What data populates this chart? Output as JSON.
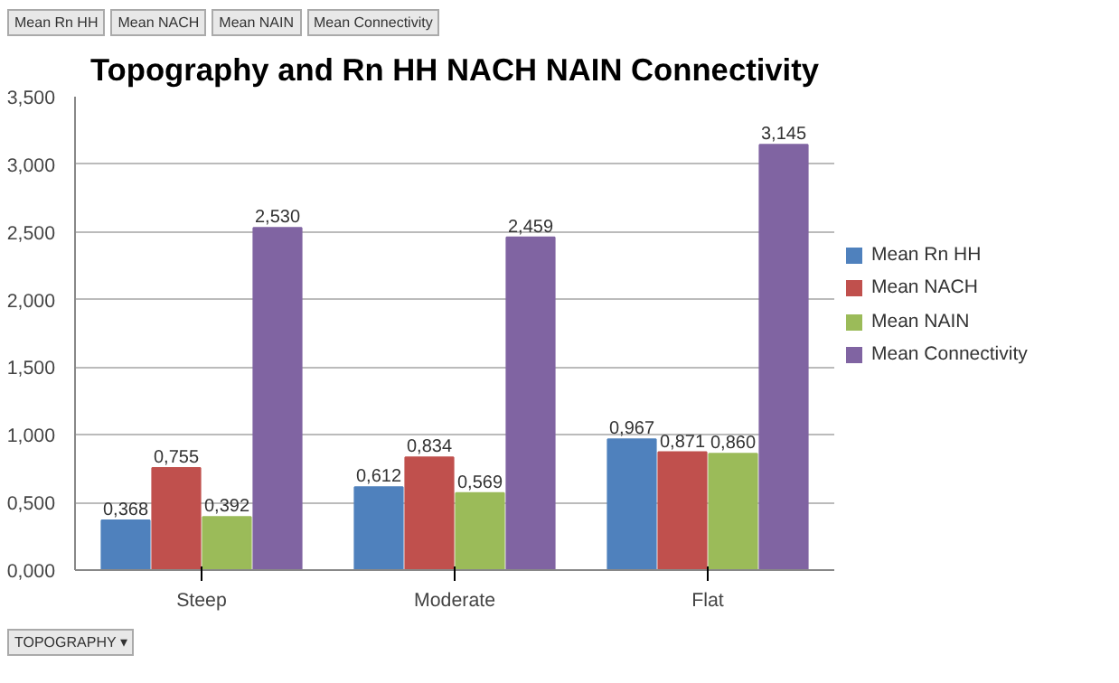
{
  "chart_data": {
    "type": "bar",
    "title": "Topography and Rn HH NACH NAIN Connectivity",
    "categories": [
      "Steep",
      "Moderate",
      "Flat"
    ],
    "series": [
      {
        "name": "Mean Rn HH",
        "color": "#4f81bd",
        "values": [
          0.368,
          0.612,
          0.967
        ],
        "value_labels": [
          "0,368",
          "0,612",
          "0,967"
        ]
      },
      {
        "name": "Mean NACH",
        "color": "#c0504d",
        "values": [
          0.755,
          0.834,
          0.871
        ],
        "value_labels": [
          "0,755",
          "0,834",
          "0,871"
        ]
      },
      {
        "name": "Mean NAIN",
        "color": "#9bbb59",
        "values": [
          0.392,
          0.569,
          0.86
        ],
        "value_labels": [
          "0,392",
          "0,569",
          "0,860"
        ]
      },
      {
        "name": "Mean Connectivity",
        "color": "#8064a2",
        "values": [
          2.53,
          2.459,
          3.145
        ],
        "value_labels": [
          "2,530",
          "2,459",
          "3,145"
        ]
      }
    ],
    "ylim": [
      0,
      3.5
    ],
    "yticks": [
      {
        "value": 0,
        "label": "0,000"
      },
      {
        "value": 0.5,
        "label": "0,500"
      },
      {
        "value": 1,
        "label": "1,000"
      },
      {
        "value": 1.5,
        "label": "1,500"
      },
      {
        "value": 2,
        "label": "2,000"
      },
      {
        "value": 2.5,
        "label": "2,500"
      },
      {
        "value": 3,
        "label": "3,000"
      },
      {
        "value": 3.5,
        "label": "3,500"
      }
    ],
    "grid": "y",
    "legend": "right",
    "annotations": [
      "Mean Rn HH",
      "Mean NACH",
      "Mean NAIN",
      "Mean Connectivity",
      "TOPOGRAPHY ▾"
    ]
  }
}
